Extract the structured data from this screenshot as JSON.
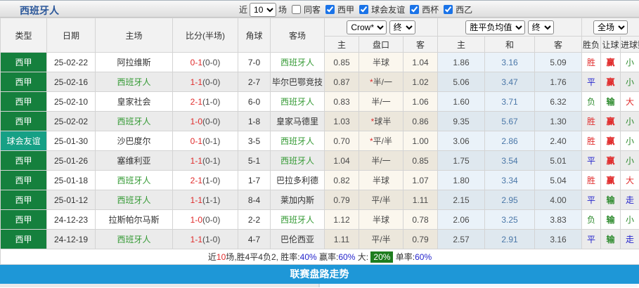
{
  "title": "西班牙人",
  "filters": {
    "near_label": "近",
    "matches_count": "10",
    "matches_label": "场",
    "same_away_label": "同客",
    "leagues": [
      {
        "label": "西甲",
        "checked": true
      },
      {
        "label": "球会友谊",
        "checked": true
      },
      {
        "label": "西杯",
        "checked": true
      },
      {
        "label": "西乙",
        "checked": true
      }
    ]
  },
  "table": {
    "left_headers": [
      "类型",
      "日期",
      "主场",
      "比分(半场)",
      "角球",
      "客场"
    ],
    "group_headers": {
      "crow_select": "Crow*",
      "crow_final_select": "终",
      "mean_select": "胜平负均值",
      "mean_final_select": "终",
      "scope_select": "全场"
    },
    "sub_headers": [
      "主",
      "盘口",
      "客",
      "主",
      "和",
      "客",
      "胜负",
      "让球",
      "进球数"
    ],
    "rows": [
      {
        "type": "西甲",
        "type_style": "league",
        "date": "25-02-22",
        "home": "阿拉维斯",
        "home_team": false,
        "score": "0-1",
        "half": "(0-0)",
        "corner": "7-0",
        "away": "西班牙人",
        "away_team": true,
        "crow_home": "0.85",
        "handicap": "半球",
        "handicap_star": false,
        "crow_away": "1.04",
        "mean_home": "1.86",
        "mean_draw": "3.16",
        "mean_away": "5.09",
        "result": "胜",
        "result_style": "red",
        "let": "赢",
        "let_style": "red",
        "goal": "小",
        "goal_style": "green"
      },
      {
        "type": "西甲",
        "type_style": "league",
        "date": "25-02-16",
        "home": "西班牙人",
        "home_team": true,
        "score": "1-1",
        "half": "(0-0)",
        "corner": "2-7",
        "away": "毕尔巴鄂竞技",
        "away_team": false,
        "crow_home": "0.87",
        "handicap": "半/一",
        "handicap_star": true,
        "crow_away": "1.02",
        "mean_home": "5.06",
        "mean_draw": "3.47",
        "mean_away": "1.76",
        "result": "平",
        "result_style": "blue",
        "let": "赢",
        "let_style": "red",
        "goal": "小",
        "goal_style": "green"
      },
      {
        "type": "西甲",
        "type_style": "league",
        "date": "25-02-10",
        "home": "皇家社会",
        "home_team": false,
        "score": "2-1",
        "half": "(1-0)",
        "corner": "6-0",
        "away": "西班牙人",
        "away_team": true,
        "crow_home": "0.83",
        "handicap": "半/一",
        "handicap_star": false,
        "crow_away": "1.06",
        "mean_home": "1.60",
        "mean_draw": "3.71",
        "mean_away": "6.32",
        "result": "负",
        "result_style": "green",
        "let": "输",
        "let_style": "green",
        "goal": "大",
        "goal_style": "red"
      },
      {
        "type": "西甲",
        "type_style": "league",
        "date": "25-02-02",
        "home": "西班牙人",
        "home_team": true,
        "score": "1-0",
        "half": "(0-0)",
        "corner": "1-8",
        "away": "皇家马德里",
        "away_team": false,
        "crow_home": "1.03",
        "handicap": "球半",
        "handicap_star": true,
        "crow_away": "0.86",
        "mean_home": "9.35",
        "mean_draw": "5.67",
        "mean_away": "1.30",
        "result": "胜",
        "result_style": "red",
        "let": "赢",
        "let_style": "red",
        "goal": "小",
        "goal_style": "green"
      },
      {
        "type": "球会友谊",
        "type_style": "friendly",
        "date": "25-01-30",
        "home": "沙巴度尔",
        "home_team": false,
        "score": "0-1",
        "half": "(0-1)",
        "corner": "3-5",
        "away": "西班牙人",
        "away_team": true,
        "crow_home": "0.70",
        "handicap": "平/半",
        "handicap_star": true,
        "crow_away": "1.00",
        "mean_home": "3.06",
        "mean_draw": "2.86",
        "mean_away": "2.40",
        "result": "胜",
        "result_style": "red",
        "let": "赢",
        "let_style": "red",
        "goal": "小",
        "goal_style": "green"
      },
      {
        "type": "西甲",
        "type_style": "league",
        "date": "25-01-26",
        "home": "塞维利亚",
        "home_team": false,
        "score": "1-1",
        "half": "(0-1)",
        "corner": "5-1",
        "away": "西班牙人",
        "away_team": true,
        "crow_home": "1.04",
        "handicap": "半/一",
        "handicap_star": false,
        "crow_away": "0.85",
        "mean_home": "1.75",
        "mean_draw": "3.54",
        "mean_away": "5.01",
        "result": "平",
        "result_style": "blue",
        "let": "赢",
        "let_style": "red",
        "goal": "小",
        "goal_style": "green"
      },
      {
        "type": "西甲",
        "type_style": "league",
        "date": "25-01-18",
        "home": "西班牙人",
        "home_team": true,
        "score": "2-1",
        "half": "(1-0)",
        "corner": "1-7",
        "away": "巴拉多利德",
        "away_team": false,
        "crow_home": "0.82",
        "handicap": "半球",
        "handicap_star": false,
        "crow_away": "1.07",
        "mean_home": "1.80",
        "mean_draw": "3.34",
        "mean_away": "5.04",
        "result": "胜",
        "result_style": "red",
        "let": "赢",
        "let_style": "red",
        "goal": "大",
        "goal_style": "red"
      },
      {
        "type": "西甲",
        "type_style": "league",
        "date": "25-01-12",
        "home": "西班牙人",
        "home_team": true,
        "score": "1-1",
        "half": "(1-1)",
        "corner": "8-4",
        "away": "莱加内斯",
        "away_team": false,
        "crow_home": "0.79",
        "handicap": "平/半",
        "handicap_star": false,
        "crow_away": "1.11",
        "mean_home": "2.15",
        "mean_draw": "2.95",
        "mean_away": "4.00",
        "result": "平",
        "result_style": "blue",
        "let": "输",
        "let_style": "green",
        "goal": "走",
        "goal_style": "blue"
      },
      {
        "type": "西甲",
        "type_style": "league",
        "date": "24-12-23",
        "home": "拉斯帕尔马斯",
        "home_team": false,
        "score": "1-0",
        "half": "(0-0)",
        "corner": "2-2",
        "away": "西班牙人",
        "away_team": true,
        "crow_home": "1.12",
        "handicap": "半球",
        "handicap_star": false,
        "crow_away": "0.78",
        "mean_home": "2.06",
        "mean_draw": "3.25",
        "mean_away": "3.83",
        "result": "负",
        "result_style": "green",
        "let": "输",
        "let_style": "green",
        "goal": "小",
        "goal_style": "green"
      },
      {
        "type": "西甲",
        "type_style": "league",
        "date": "24-12-19",
        "home": "西班牙人",
        "home_team": true,
        "score": "1-1",
        "half": "(1-0)",
        "corner": "4-7",
        "away": "巴伦西亚",
        "away_team": false,
        "crow_home": "1.11",
        "handicap": "平/半",
        "handicap_star": false,
        "crow_away": "0.79",
        "mean_home": "2.57",
        "mean_draw": "2.91",
        "mean_away": "3.16",
        "result": "平",
        "result_style": "blue",
        "let": "输",
        "let_style": "green",
        "goal": "走",
        "goal_style": "blue"
      }
    ]
  },
  "summary": {
    "segments": [
      {
        "text": "近",
        "style": "plain"
      },
      {
        "text": "10",
        "style": "red"
      },
      {
        "text": "场,胜4平4负2, 胜率:",
        "style": "plain"
      },
      {
        "text": "40%",
        "style": "blue"
      },
      {
        "text": " 赢率:",
        "style": "plain"
      },
      {
        "text": "60%",
        "style": "blue"
      },
      {
        "text": " 大: ",
        "style": "plain"
      },
      {
        "text": "20%",
        "style": "green-badge"
      },
      {
        "text": " 单率:",
        "style": "plain"
      },
      {
        "text": "60%",
        "style": "blue"
      }
    ]
  },
  "footer": {
    "label": "联赛盘路走势"
  }
}
